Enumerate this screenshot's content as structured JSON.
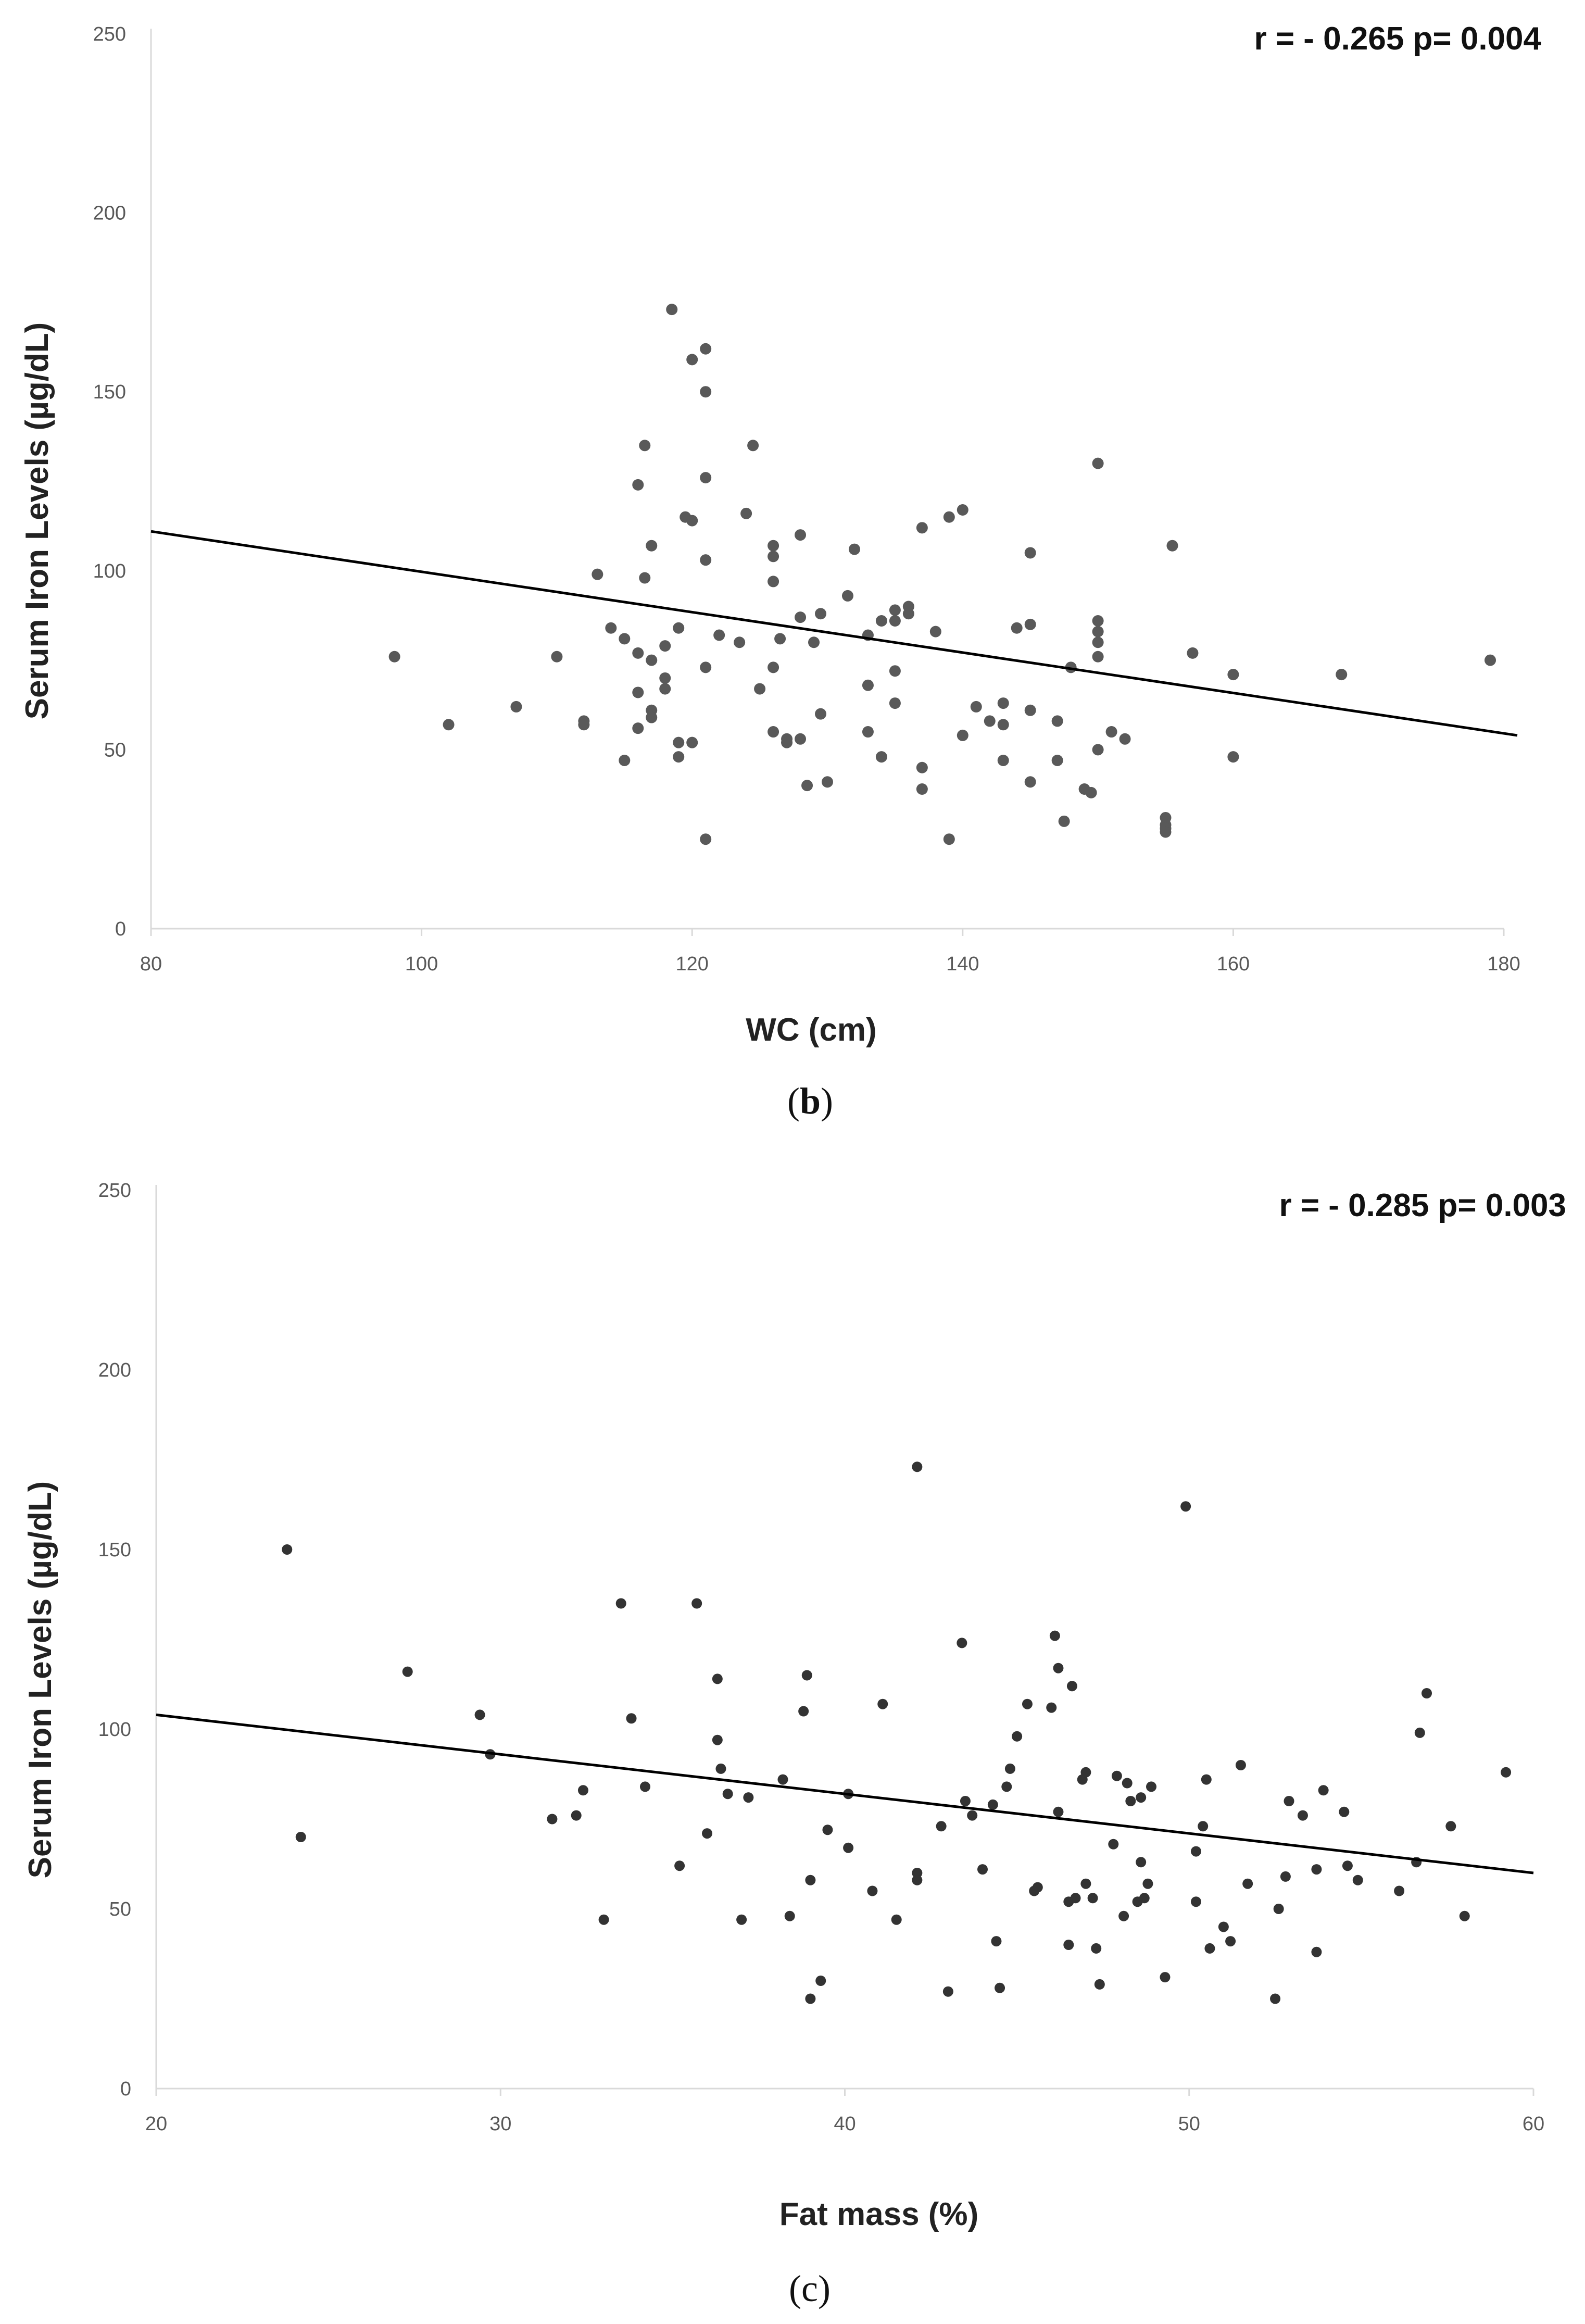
{
  "chart_data": [
    {
      "type": "scatter",
      "panel_label": "b",
      "annotation": "r = - 0.265 p= 0.004",
      "xlabel": "WC (cm)",
      "ylabel": "Serum Iron Levels (µg/dL)",
      "xlim": [
        80,
        180
      ],
      "ylim": [
        0,
        250
      ],
      "xticks": [
        "80",
        "100",
        "120",
        "140",
        "160",
        "180"
      ],
      "yticks": [
        "0",
        "50",
        "100",
        "150",
        "200",
        "250"
      ],
      "trendline": {
        "x": [
          80,
          181
        ],
        "y": [
          111,
          54
        ]
      },
      "points": [
        [
          98,
          76
        ],
        [
          102,
          57
        ],
        [
          107,
          62
        ],
        [
          110,
          76
        ],
        [
          112,
          58
        ],
        [
          112,
          57
        ],
        [
          113,
          99
        ],
        [
          114,
          84
        ],
        [
          115,
          81
        ],
        [
          115,
          47
        ],
        [
          116,
          124
        ],
        [
          116,
          77
        ],
        [
          116,
          66
        ],
        [
          116,
          56
        ],
        [
          116.5,
          135
        ],
        [
          116.5,
          98
        ],
        [
          117,
          107
        ],
        [
          117,
          75
        ],
        [
          117,
          61
        ],
        [
          117,
          59
        ],
        [
          118,
          79
        ],
        [
          118,
          70
        ],
        [
          118,
          67
        ],
        [
          118.5,
          173
        ],
        [
          119,
          84
        ],
        [
          119,
          52
        ],
        [
          119,
          48
        ],
        [
          119.5,
          115
        ],
        [
          120,
          159
        ],
        [
          120,
          114
        ],
        [
          120,
          52
        ],
        [
          121,
          162
        ],
        [
          121,
          150
        ],
        [
          121,
          126
        ],
        [
          121,
          103
        ],
        [
          121,
          73
        ],
        [
          121,
          25
        ],
        [
          122,
          82
        ],
        [
          123.5,
          80
        ],
        [
          124,
          116
        ],
        [
          124.5,
          135
        ],
        [
          125,
          67
        ],
        [
          126,
          107
        ],
        [
          126,
          104
        ],
        [
          126,
          97
        ],
        [
          126,
          73
        ],
        [
          126,
          55
        ],
        [
          126.5,
          81
        ],
        [
          127,
          53
        ],
        [
          127,
          52
        ],
        [
          128,
          110
        ],
        [
          128,
          87
        ],
        [
          128,
          53
        ],
        [
          128.5,
          40
        ],
        [
          129,
          80
        ],
        [
          129.5,
          88
        ],
        [
          129.5,
          60
        ],
        [
          130,
          41
        ],
        [
          131.5,
          93
        ],
        [
          132,
          106
        ],
        [
          133,
          82
        ],
        [
          133,
          68
        ],
        [
          133,
          55
        ],
        [
          134,
          86
        ],
        [
          134,
          48
        ],
        [
          135,
          89
        ],
        [
          135,
          86
        ],
        [
          135,
          72
        ],
        [
          135,
          63
        ],
        [
          136,
          90
        ],
        [
          136,
          88
        ],
        [
          137,
          112
        ],
        [
          137,
          45
        ],
        [
          137,
          39
        ],
        [
          138,
          83
        ],
        [
          139,
          115
        ],
        [
          139,
          25
        ],
        [
          140,
          117
        ],
        [
          140,
          54
        ],
        [
          141,
          62
        ],
        [
          142,
          58
        ],
        [
          143,
          63
        ],
        [
          143,
          57
        ],
        [
          143,
          47
        ],
        [
          144,
          84
        ],
        [
          145,
          105
        ],
        [
          145,
          85
        ],
        [
          145,
          61
        ],
        [
          145,
          41
        ],
        [
          147,
          58
        ],
        [
          147,
          47
        ],
        [
          147.5,
          30
        ],
        [
          148,
          73
        ],
        [
          149,
          39
        ],
        [
          149.5,
          38
        ],
        [
          150,
          130
        ],
        [
          150,
          86
        ],
        [
          150,
          83
        ],
        [
          150,
          80
        ],
        [
          150,
          76
        ],
        [
          150,
          50
        ],
        [
          151,
          55
        ],
        [
          152,
          53
        ],
        [
          155,
          31
        ],
        [
          155,
          29
        ],
        [
          155,
          28
        ],
        [
          155,
          27
        ],
        [
          155.5,
          107
        ],
        [
          157,
          77
        ],
        [
          160,
          71
        ],
        [
          160,
          48
        ],
        [
          168,
          71
        ],
        [
          179,
          75
        ]
      ]
    },
    {
      "type": "scatter",
      "panel_label": "c",
      "annotation": "r = - 0.285 p= 0.003",
      "xlabel": "Fat mass (%)",
      "ylabel": "Serum Iron Levels (µg/dL)",
      "xlim": [
        20,
        60
      ],
      "ylim": [
        0,
        250
      ],
      "xticks": [
        "20",
        "30",
        "40",
        "50",
        "60"
      ],
      "yticks": [
        "0",
        "50",
        "100",
        "150",
        "200",
        "250"
      ],
      "trendline": {
        "x": [
          20,
          60
        ],
        "y": [
          104,
          60
        ]
      },
      "points": [
        [
          23.8,
          150
        ],
        [
          24.2,
          70
        ],
        [
          27.3,
          116
        ],
        [
          29.4,
          104
        ],
        [
          29.7,
          93
        ],
        [
          31.5,
          75
        ],
        [
          32.2,
          76
        ],
        [
          32.4,
          83
        ],
        [
          33,
          47
        ],
        [
          33.5,
          135
        ],
        [
          33.8,
          103
        ],
        [
          34.2,
          84
        ],
        [
          35.2,
          62
        ],
        [
          35.7,
          135
        ],
        [
          36,
          71
        ],
        [
          36.3,
          114
        ],
        [
          36.3,
          97
        ],
        [
          36.4,
          89
        ],
        [
          36.6,
          82
        ],
        [
          37,
          47
        ],
        [
          37.2,
          81
        ],
        [
          38.2,
          86
        ],
        [
          38.4,
          48
        ],
        [
          38.8,
          105
        ],
        [
          38.9,
          115
        ],
        [
          39,
          58
        ],
        [
          39,
          25
        ],
        [
          39.3,
          30
        ],
        [
          39.5,
          72
        ],
        [
          40.1,
          82
        ],
        [
          40.1,
          67
        ],
        [
          40.8,
          55
        ],
        [
          41.1,
          107
        ],
        [
          41.5,
          47
        ],
        [
          42.1,
          173
        ],
        [
          42.1,
          60
        ],
        [
          42.1,
          58
        ],
        [
          42.8,
          73
        ],
        [
          43,
          27
        ],
        [
          43.4,
          124
        ],
        [
          43.5,
          80
        ],
        [
          43.7,
          76
        ],
        [
          44,
          61
        ],
        [
          44.3,
          79
        ],
        [
          44.4,
          41
        ],
        [
          44.5,
          28
        ],
        [
          44.7,
          84
        ],
        [
          44.8,
          89
        ],
        [
          45,
          98
        ],
        [
          45.3,
          107
        ],
        [
          45.5,
          55
        ],
        [
          45.6,
          56
        ],
        [
          46,
          106
        ],
        [
          46.1,
          126
        ],
        [
          46.2,
          77
        ],
        [
          46.2,
          117
        ],
        [
          46.5,
          40
        ],
        [
          46.5,
          52
        ],
        [
          46.6,
          112
        ],
        [
          46.7,
          53
        ],
        [
          46.9,
          86
        ],
        [
          47,
          88
        ],
        [
          47,
          57
        ],
        [
          47.2,
          53
        ],
        [
          47.3,
          39
        ],
        [
          47.4,
          29
        ],
        [
          47.8,
          68
        ],
        [
          47.9,
          87
        ],
        [
          48.1,
          48
        ],
        [
          48.2,
          85
        ],
        [
          48.3,
          80
        ],
        [
          48.5,
          52
        ],
        [
          48.6,
          81
        ],
        [
          48.6,
          63
        ],
        [
          48.7,
          53
        ],
        [
          48.8,
          57
        ],
        [
          48.9,
          84
        ],
        [
          49.3,
          31
        ],
        [
          49.9,
          162
        ],
        [
          50.2,
          66
        ],
        [
          50.2,
          52
        ],
        [
          50.4,
          73
        ],
        [
          50.5,
          86
        ],
        [
          50.6,
          39
        ],
        [
          51,
          45
        ],
        [
          51.2,
          41
        ],
        [
          51.5,
          90
        ],
        [
          51.7,
          57
        ],
        [
          52.5,
          25
        ],
        [
          52.6,
          50
        ],
        [
          52.8,
          59
        ],
        [
          52.9,
          80
        ],
        [
          53.3,
          76
        ],
        [
          53.7,
          61
        ],
        [
          53.7,
          38
        ],
        [
          53.9,
          83
        ],
        [
          54.5,
          77
        ],
        [
          54.6,
          62
        ],
        [
          54.9,
          58
        ],
        [
          56.1,
          55
        ],
        [
          56.6,
          63
        ],
        [
          56.7,
          99
        ],
        [
          56.9,
          110
        ],
        [
          57.6,
          73
        ],
        [
          58,
          48
        ],
        [
          59.2,
          88
        ]
      ]
    }
  ]
}
